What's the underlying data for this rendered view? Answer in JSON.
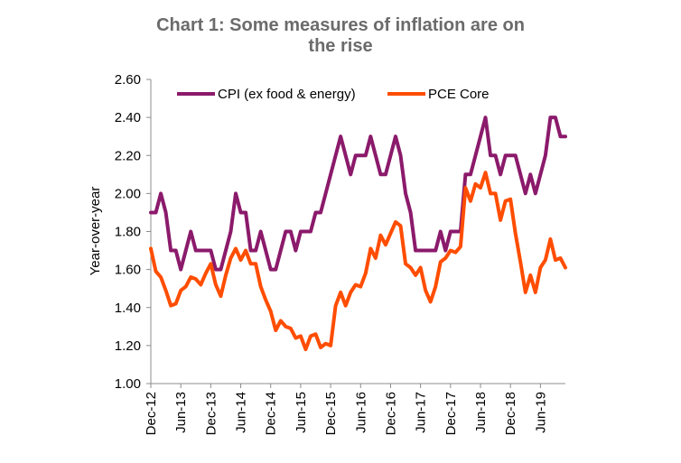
{
  "chart_data": {
    "type": "line",
    "title_lines": [
      "Chart 1: Some measures of inflation are on",
      "the rise"
    ],
    "xlabel": "",
    "ylabel": "Year-over-year",
    "ylim": [
      1.0,
      2.6
    ],
    "yticks": [
      "2.60",
      "2.40",
      "2.20",
      "2.00",
      "1.80",
      "1.60",
      "1.40",
      "1.20",
      "1.00"
    ],
    "x_tick_labels": [
      "Dec-12",
      "Jun-13",
      "Dec-13",
      "Jun-14",
      "Dec-14",
      "Jun-15",
      "Dec-15",
      "Jun-16",
      "Dec-16",
      "Jun-17",
      "Dec-17",
      "Jun-18",
      "Dec-18",
      "Jun-19"
    ],
    "x_tick_interval_months": 6,
    "grid": false,
    "legend_position": "top-left",
    "series": [
      {
        "name": "CPI (ex food & energy)",
        "color": "#8b1a6b",
        "values": [
          1.9,
          1.9,
          2.0,
          1.9,
          1.7,
          1.7,
          1.6,
          1.7,
          1.8,
          1.7,
          1.7,
          1.7,
          1.7,
          1.6,
          1.6,
          1.7,
          1.8,
          2.0,
          1.9,
          1.9,
          1.7,
          1.7,
          1.8,
          1.7,
          1.6,
          1.6,
          1.7,
          1.8,
          1.8,
          1.7,
          1.8,
          1.8,
          1.8,
          1.9,
          1.9,
          2.0,
          2.1,
          2.2,
          2.3,
          2.2,
          2.1,
          2.2,
          2.2,
          2.2,
          2.3,
          2.2,
          2.1,
          2.1,
          2.2,
          2.3,
          2.2,
          2.0,
          1.9,
          1.7,
          1.7,
          1.7,
          1.7,
          1.7,
          1.8,
          1.7,
          1.8,
          1.8,
          1.8,
          2.1,
          2.1,
          2.2,
          2.3,
          2.4,
          2.2,
          2.2,
          2.1,
          2.2,
          2.2,
          2.2,
          2.1,
          2.0,
          2.1,
          2.0,
          2.1,
          2.2,
          2.4,
          2.4,
          2.3,
          2.3
        ]
      },
      {
        "name": "PCE Core",
        "color": "#ff4d00",
        "values": [
          1.71,
          1.59,
          1.56,
          1.49,
          1.41,
          1.42,
          1.49,
          1.51,
          1.56,
          1.55,
          1.52,
          1.58,
          1.63,
          1.52,
          1.46,
          1.57,
          1.66,
          1.71,
          1.65,
          1.7,
          1.63,
          1.63,
          1.51,
          1.44,
          1.38,
          1.28,
          1.33,
          1.3,
          1.29,
          1.24,
          1.25,
          1.18,
          1.25,
          1.26,
          1.19,
          1.21,
          1.2,
          1.41,
          1.48,
          1.41,
          1.48,
          1.52,
          1.51,
          1.58,
          1.71,
          1.66,
          1.78,
          1.73,
          1.79,
          1.85,
          1.83,
          1.63,
          1.61,
          1.57,
          1.61,
          1.49,
          1.43,
          1.51,
          1.64,
          1.66,
          1.7,
          1.69,
          1.72,
          2.03,
          1.96,
          2.05,
          2.03,
          2.11,
          2.0,
          2.0,
          1.86,
          1.96,
          1.97,
          1.79,
          1.64,
          1.48,
          1.57,
          1.48,
          1.61,
          1.65,
          1.76,
          1.65,
          1.66,
          1.61
        ]
      }
    ]
  }
}
